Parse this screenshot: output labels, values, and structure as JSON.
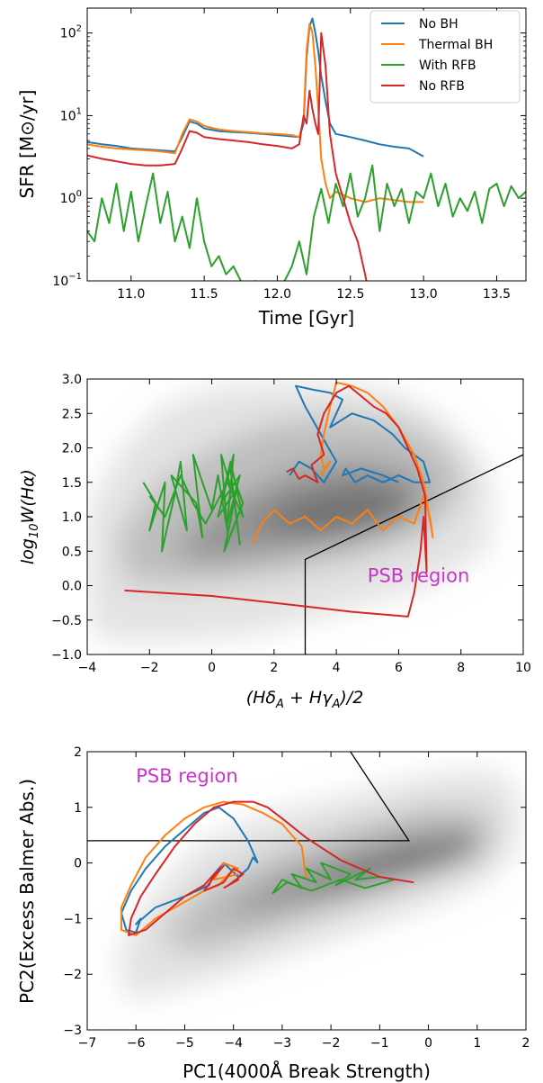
{
  "figure": {
    "colors": {
      "no_bh": "#1f77b4",
      "thermal_bh": "#ff7f0e",
      "with_rfb": "#2ca02c",
      "no_rfb": "#d62728",
      "psb_text": "#cc33cc",
      "density_dark": "#555555"
    }
  },
  "chart_data": [
    {
      "type": "line",
      "title": "",
      "xlabel": "Time [Gyr]",
      "ylabel": "SFR [M⊙/yr]",
      "xlim": [
        10.7,
        13.7
      ],
      "ylim": [
        0.1,
        200
      ],
      "yscale": "log",
      "grid": false,
      "legend_position": "top-right",
      "xticks": [
        {
          "v": 11.0,
          "label": "11.0"
        },
        {
          "v": 11.5,
          "label": "11.5"
        },
        {
          "v": 12.0,
          "label": "12.0"
        },
        {
          "v": 12.5,
          "label": "12.5"
        },
        {
          "v": 13.0,
          "label": "13.0"
        },
        {
          "v": 13.5,
          "label": "13.5"
        }
      ],
      "yticks": [
        {
          "v": 0.1,
          "base": "10",
          "exp": "−1"
        },
        {
          "v": 1,
          "base": "10",
          "exp": "0"
        },
        {
          "v": 10,
          "base": "10",
          "exp": "1"
        },
        {
          "v": 100,
          "base": "10",
          "exp": "2"
        }
      ],
      "series": [
        {
          "name": "No BH",
          "color_key": "no_bh",
          "x": [
            10.7,
            10.8,
            10.9,
            11.0,
            11.1,
            11.2,
            11.3,
            11.35,
            11.4,
            11.45,
            11.5,
            11.6,
            11.7,
            11.8,
            11.9,
            12.0,
            12.1,
            12.15,
            12.18,
            12.2,
            12.22,
            12.24,
            12.26,
            12.28,
            12.3,
            12.33,
            12.36,
            12.4,
            12.5,
            12.6,
            12.7,
            12.8,
            12.9,
            13.0
          ],
          "y": [
            4.8,
            4.5,
            4.3,
            4.0,
            3.9,
            3.8,
            3.7,
            5.5,
            8.5,
            8.0,
            7.0,
            6.5,
            6.3,
            6.2,
            6.0,
            5.8,
            5.6,
            5.5,
            8.0,
            50,
            120,
            150,
            100,
            60,
            30,
            15,
            8.0,
            6.0,
            5.5,
            5.0,
            4.5,
            4.2,
            4.0,
            3.2
          ]
        },
        {
          "name": "Thermal BH",
          "color_key": "thermal_bh",
          "x": [
            10.7,
            10.8,
            10.9,
            11.0,
            11.1,
            11.2,
            11.3,
            11.35,
            11.4,
            11.45,
            11.5,
            11.6,
            11.7,
            11.8,
            11.9,
            12.0,
            12.1,
            12.15,
            12.18,
            12.2,
            12.22,
            12.24,
            12.26,
            12.28,
            12.3,
            12.33,
            12.36,
            12.4,
            12.5,
            12.6,
            12.7,
            12.8,
            12.9,
            13.0
          ],
          "y": [
            4.5,
            4.2,
            4.0,
            3.9,
            3.8,
            3.7,
            3.5,
            6.0,
            9.0,
            8.5,
            7.5,
            6.8,
            6.5,
            6.3,
            6.1,
            6.0,
            5.8,
            5.5,
            9.0,
            60,
            130,
            100,
            40,
            12,
            3.0,
            1.5,
            1.0,
            1.2,
            1.0,
            0.9,
            1.0,
            0.95,
            0.9,
            0.9
          ]
        },
        {
          "name": "With RFB",
          "color_key": "with_rfb",
          "x": [
            10.7,
            10.75,
            10.8,
            10.85,
            10.9,
            10.95,
            11.0,
            11.05,
            11.1,
            11.15,
            11.2,
            11.25,
            11.3,
            11.35,
            11.4,
            11.45,
            11.5,
            11.55,
            11.6,
            11.65,
            11.7,
            11.75,
            11.8,
            11.85,
            11.9,
            11.95,
            12.0,
            12.05,
            12.1,
            12.15,
            12.2,
            12.25,
            12.3,
            12.35,
            12.4,
            12.45,
            12.5,
            12.55,
            12.6,
            12.65,
            12.7,
            12.75,
            12.8,
            12.85,
            12.9,
            12.95,
            13.0,
            13.05,
            13.1,
            13.15,
            13.2,
            13.25,
            13.3,
            13.35,
            13.4,
            13.45,
            13.5,
            13.55,
            13.6,
            13.65,
            13.7
          ],
          "y": [
            0.4,
            0.3,
            1.0,
            0.5,
            1.5,
            0.4,
            1.2,
            0.3,
            0.8,
            2.0,
            0.5,
            1.2,
            0.3,
            0.6,
            0.25,
            1.0,
            0.3,
            0.15,
            0.2,
            0.12,
            0.15,
            0.1,
            0.08,
            0.1,
            0.09,
            0.07,
            0.08,
            0.1,
            0.15,
            0.3,
            0.12,
            0.6,
            1.3,
            0.5,
            1.5,
            0.8,
            2.0,
            0.6,
            1.0,
            2.5,
            0.4,
            1.5,
            0.8,
            1.3,
            0.5,
            1.2,
            1.0,
            2.0,
            0.8,
            1.5,
            0.6,
            1.0,
            0.7,
            1.2,
            0.5,
            1.3,
            1.5,
            0.8,
            1.4,
            1.0,
            1.2
          ]
        },
        {
          "name": "No RFB",
          "color_key": "no_rfb",
          "x": [
            10.7,
            10.8,
            10.9,
            11.0,
            11.1,
            11.2,
            11.3,
            11.35,
            11.4,
            11.45,
            11.5,
            11.6,
            11.7,
            11.8,
            11.9,
            12.0,
            12.1,
            12.15,
            12.18,
            12.2,
            12.22,
            12.24,
            12.26,
            12.28,
            12.3,
            12.33,
            12.36,
            12.4,
            12.45,
            12.5,
            12.55,
            12.6,
            12.62
          ],
          "y": [
            3.3,
            3.0,
            2.8,
            2.6,
            2.5,
            2.5,
            2.6,
            4.0,
            6.5,
            6.2,
            5.5,
            5.2,
            5.0,
            4.8,
            4.5,
            4.3,
            4.0,
            4.5,
            10.0,
            8.0,
            20,
            12,
            8.0,
            6.0,
            100,
            40,
            6.0,
            2.0,
            1.0,
            0.5,
            0.3,
            0.12,
            0.08
          ]
        }
      ]
    },
    {
      "type": "line",
      "title": "",
      "xlabel": "(HδA + HγA)/2",
      "ylabel": "log10W(Hα)",
      "xlim": [
        -4,
        10
      ],
      "ylim": [
        -1.0,
        3.0
      ],
      "grid": false,
      "background": "density contours (grey)",
      "xticks": [
        {
          "v": -4,
          "label": "−4"
        },
        {
          "v": -2,
          "label": "−2"
        },
        {
          "v": 0,
          "label": "0"
        },
        {
          "v": 2,
          "label": "2"
        },
        {
          "v": 4,
          "label": "4"
        },
        {
          "v": 6,
          "label": "6"
        },
        {
          "v": 8,
          "label": "8"
        },
        {
          "v": 10,
          "label": "10"
        }
      ],
      "yticks": [
        {
          "v": -1.0,
          "label": "−1.0"
        },
        {
          "v": -0.5,
          "label": "−0.5"
        },
        {
          "v": 0.0,
          "label": "0.0"
        },
        {
          "v": 0.5,
          "label": "0.5"
        },
        {
          "v": 1.0,
          "label": "1.0"
        },
        {
          "v": 1.5,
          "label": "1.5"
        },
        {
          "v": 2.0,
          "label": "2.0"
        },
        {
          "v": 2.5,
          "label": "2.5"
        },
        {
          "v": 3.0,
          "label": "3.0"
        }
      ],
      "annotation": {
        "text": "PSB region",
        "x": 5.0,
        "y": 0.05
      },
      "boundary": {
        "x": [
          3.0,
          3.0,
          10.0
        ],
        "y": [
          -1.0,
          0.38,
          1.9
        ]
      },
      "series": [
        {
          "color_key": "no_bh",
          "x": [
            2.5,
            2.8,
            3.2,
            3.6,
            4.0,
            3.5,
            3.0,
            2.7,
            3.2,
            3.8,
            4.2,
            3.8,
            4.5,
            5.2,
            5.8,
            6.2,
            6.8,
            7.0,
            6.5,
            6.0,
            5.5,
            5.0,
            4.6,
            4.3,
            4.2,
            4.8,
            5.5,
            6.0
          ],
          "y": [
            1.6,
            1.8,
            1.7,
            1.5,
            1.8,
            2.2,
            2.6,
            2.9,
            2.85,
            2.8,
            2.7,
            2.3,
            2.5,
            2.4,
            2.2,
            2.0,
            1.8,
            1.5,
            1.5,
            1.6,
            1.5,
            1.6,
            1.5,
            1.7,
            1.6,
            1.7,
            1.6,
            1.5
          ]
        },
        {
          "color_key": "thermal_bh",
          "x": [
            1.3,
            1.6,
            2.0,
            2.5,
            3.0,
            3.5,
            4.0,
            4.5,
            5.0,
            5.5,
            6.0,
            6.5,
            6.8,
            7.0,
            7.1,
            6.8,
            6.5,
            6.0,
            5.5,
            5.0,
            4.5,
            4.0,
            3.8,
            3.6,
            3.5,
            3.6,
            3.8,
            3.5
          ],
          "y": [
            0.6,
            0.9,
            1.1,
            0.9,
            1.0,
            0.8,
            1.0,
            0.9,
            1.1,
            0.8,
            1.0,
            0.9,
            1.3,
            1.0,
            0.7,
            1.5,
            1.9,
            2.3,
            2.6,
            2.8,
            2.9,
            2.95,
            2.6,
            2.2,
            1.9,
            1.7,
            1.8,
            1.6
          ]
        },
        {
          "color_key": "with_rfb",
          "x": [
            -2.2,
            -1.8,
            -2.0,
            -1.5,
            -1.6,
            -1.2,
            -1.0,
            -0.8,
            -1.3,
            -0.5,
            -0.3,
            -0.6,
            0.0,
            0.2,
            0.5,
            0.3,
            0.7,
            0.9,
            0.6,
            1.0,
            0.4,
            0.8,
            0.2,
            0.7,
            0.5,
            0.9,
            0.3,
            0.6,
            1.0,
            0.5,
            -0.2,
            -0.6,
            -1.0,
            -1.5,
            -2.0
          ],
          "y": [
            1.5,
            1.2,
            0.8,
            1.5,
            0.5,
            1.3,
            1.8,
            0.8,
            1.6,
            1.2,
            0.7,
            1.9,
            1.1,
            1.6,
            0.8,
            1.9,
            1.3,
            0.6,
            1.7,
            1.2,
            0.5,
            1.4,
            1.0,
            1.9,
            0.9,
            1.6,
            1.2,
            1.8,
            1.0,
            1.5,
            0.9,
            1.2,
            1.6,
            1.0,
            1.3
          ]
        },
        {
          "color_key": "no_rfb",
          "x": [
            -2.8,
            0.0,
            2.0,
            4.5,
            6.3,
            6.5,
            6.7,
            6.8,
            6.9,
            6.85,
            6.6,
            6.3,
            6.0,
            5.6,
            5.2,
            4.8,
            4.4,
            4.0,
            3.6,
            3.4,
            3.6,
            3.2,
            3.4,
            3.0,
            2.8,
            2.6,
            2.4
          ],
          "y": [
            -0.07,
            -0.15,
            -0.25,
            -0.38,
            -0.45,
            -0.1,
            0.5,
            1.0,
            0.2,
            1.3,
            1.7,
            2.0,
            2.3,
            2.5,
            2.6,
            2.75,
            2.9,
            2.8,
            2.5,
            2.2,
            1.9,
            1.75,
            1.5,
            1.6,
            1.55,
            1.7,
            1.65
          ]
        }
      ]
    },
    {
      "type": "line",
      "title": "",
      "xlabel": "PC1(4000Å Break Strength)",
      "ylabel": "PC2(Excess Balmer Abs.)",
      "xlim": [
        -7,
        2
      ],
      "ylim": [
        -3,
        2
      ],
      "grid": false,
      "background": "density contours (grey)",
      "xticks": [
        {
          "v": -7,
          "label": "−7"
        },
        {
          "v": -6,
          "label": "−6"
        },
        {
          "v": -5,
          "label": "−5"
        },
        {
          "v": -4,
          "label": "−4"
        },
        {
          "v": -3,
          "label": "−3"
        },
        {
          "v": -2,
          "label": "−2"
        },
        {
          "v": -1,
          "label": "−1"
        },
        {
          "v": 0,
          "label": "0"
        },
        {
          "v": 1,
          "label": "1"
        },
        {
          "v": 2,
          "label": "2"
        }
      ],
      "yticks": [
        {
          "v": -3,
          "label": "−3"
        },
        {
          "v": -2,
          "label": "−2"
        },
        {
          "v": -1,
          "label": "−1"
        },
        {
          "v": 0,
          "label": "0"
        },
        {
          "v": 1,
          "label": "1"
        },
        {
          "v": 2,
          "label": "2"
        }
      ],
      "annotation": {
        "text": "PSB region",
        "x": -6.0,
        "y": 1.45
      },
      "boundary": {
        "x": [
          -7.0,
          -0.4,
          -1.6
        ],
        "y": [
          0.4,
          0.4,
          2.0
        ]
      },
      "series": [
        {
          "color_key": "no_bh",
          "x": [
            -3.5,
            -3.7,
            -4.0,
            -4.3,
            -4.6,
            -5.0,
            -5.4,
            -5.8,
            -6.1,
            -6.3,
            -6.2,
            -6.0,
            -5.9,
            -6.0,
            -5.6,
            -5.0,
            -4.5,
            -4.4,
            -4.2,
            -3.9,
            -3.7,
            -3.6,
            -3.5
          ],
          "y": [
            0.0,
            0.4,
            0.8,
            1.0,
            0.9,
            0.6,
            0.3,
            -0.1,
            -0.5,
            -0.9,
            -1.2,
            -1.25,
            -1.0,
            -1.1,
            -0.8,
            -0.6,
            -0.4,
            -0.2,
            0.0,
            -0.25,
            -0.1,
            0.1,
            0.0
          ]
        },
        {
          "color_key": "thermal_bh",
          "x": [
            -2.5,
            -2.6,
            -3.0,
            -3.4,
            -3.8,
            -4.2,
            -4.6,
            -5.0,
            -5.4,
            -5.8,
            -6.1,
            -6.3,
            -6.3,
            -6.0,
            -5.6,
            -5.0,
            -4.6,
            -4.3,
            -4.1,
            -3.9,
            -4.2,
            -4.4,
            -3.9
          ],
          "y": [
            -0.3,
            0.3,
            0.7,
            0.9,
            1.05,
            1.1,
            1.0,
            0.8,
            0.5,
            0.1,
            -0.4,
            -0.8,
            -1.2,
            -1.3,
            -1.0,
            -0.7,
            -0.5,
            -0.4,
            -0.2,
            -0.1,
            0.0,
            -0.3,
            -0.2
          ]
        },
        {
          "color_key": "with_rfb",
          "x": [
            -3.2,
            -3.0,
            -2.6,
            -2.8,
            -2.3,
            -2.5,
            -2.0,
            -2.2,
            -1.6,
            -1.9,
            -1.2,
            -1.5,
            -1.0,
            -0.7,
            -1.3,
            -1.8,
            -2.4,
            -2.9,
            -3.2
          ],
          "y": [
            -0.55,
            -0.3,
            -0.45,
            -0.2,
            -0.35,
            -0.1,
            -0.3,
            0.0,
            -0.2,
            -0.4,
            -0.1,
            -0.3,
            -0.25,
            -0.3,
            -0.45,
            -0.3,
            -0.5,
            -0.35,
            -0.55
          ]
        },
        {
          "color_key": "no_rfb",
          "x": [
            -0.3,
            -1.0,
            -1.8,
            -2.5,
            -3.0,
            -3.3,
            -3.6,
            -4.0,
            -4.4,
            -4.8,
            -5.2,
            -5.6,
            -5.9,
            -6.1,
            -6.15,
            -5.8,
            -5.4,
            -5.0,
            -4.6,
            -4.4,
            -4.2,
            -4.4,
            -4.6,
            -4.2,
            -4.0,
            -3.8,
            -4.1,
            -3.9,
            -4.2
          ],
          "y": [
            -0.35,
            -0.25,
            0.05,
            0.45,
            0.8,
            1.0,
            1.1,
            1.1,
            1.0,
            0.7,
            0.3,
            -0.2,
            -0.6,
            -1.0,
            -1.3,
            -1.2,
            -0.9,
            -0.6,
            -0.4,
            -0.2,
            -0.05,
            -0.25,
            -0.5,
            -0.35,
            -0.1,
            -0.2,
            -0.4,
            -0.3,
            -0.45
          ]
        }
      ]
    }
  ]
}
